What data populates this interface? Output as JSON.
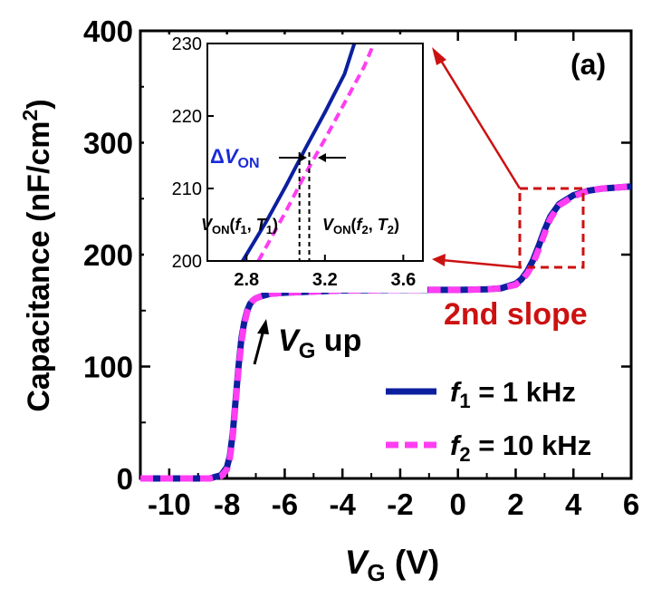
{
  "figure": {
    "panel_label": "(a)",
    "annotation_up": {
      "main": "V",
      "sub": "G",
      "rest": " up"
    },
    "annotation_slope": "2nd slope",
    "colors": {
      "f1": "#0b1f9f",
      "f2": "#ff3df2",
      "accent": "#cc1111",
      "axis": "#000000",
      "label_blue": "#1a2bd6"
    }
  },
  "chart_data": [
    {
      "type": "line",
      "title": "",
      "xlabel": {
        "main": "V",
        "sub": "G",
        "rest": " (V)"
      },
      "ylabel": "Capacitance (nF/cm",
      "ylabel_sup": "2",
      "ylabel_close": ")",
      "xlim": [
        -11,
        6
      ],
      "ylim": [
        0,
        400
      ],
      "xticks": [
        -10,
        -8,
        -6,
        -4,
        -2,
        0,
        2,
        4,
        6
      ],
      "yticks": [
        0,
        100,
        200,
        300,
        400
      ],
      "grid": false,
      "legend_position": "bottom-right",
      "series": [
        {
          "name": {
            "main": "f",
            "sub": "1",
            "rest": " = 1 kHz"
          },
          "color": "#0b1f9f",
          "style": "solid",
          "x": [
            -11,
            -8.6,
            -8.2,
            -8.0,
            -7.9,
            -7.8,
            -7.7,
            -7.6,
            -7.5,
            -7.4,
            -7.3,
            -7.2,
            -7.1,
            -7.0,
            -6.8,
            -6.5,
            -6.0,
            -4.0,
            -2.0,
            0.0,
            1.0,
            1.5,
            2.0,
            2.2,
            2.4,
            2.6,
            2.8,
            3.0,
            3.2,
            3.5,
            4.0,
            4.5,
            5.0,
            6.0
          ],
          "y": [
            0,
            0,
            3,
            10,
            20,
            40,
            70,
            100,
            125,
            140,
            150,
            156,
            159,
            161,
            163,
            165,
            166,
            168,
            168.5,
            168.5,
            169,
            170,
            174,
            178,
            185,
            195,
            208,
            222,
            234,
            245,
            253,
            257,
            259,
            261
          ]
        },
        {
          "name": {
            "main": "f",
            "sub": "2",
            "rest": " = 10 kHz"
          },
          "color": "#ff3df2",
          "style": "dashed",
          "x": [
            -11,
            -8.6,
            -8.2,
            -8.0,
            -7.9,
            -7.8,
            -7.7,
            -7.6,
            -7.5,
            -7.4,
            -7.3,
            -7.2,
            -7.1,
            -7.0,
            -6.8,
            -6.5,
            -6.0,
            -4.0,
            -2.0,
            0.0,
            1.0,
            1.5,
            2.0,
            2.2,
            2.4,
            2.6,
            2.8,
            3.0,
            3.2,
            3.5,
            4.0,
            4.5,
            5.0,
            6.0
          ],
          "y": [
            0,
            0,
            2,
            8,
            18,
            37,
            67,
            97,
            122,
            138,
            149,
            155,
            159,
            161,
            163,
            165,
            166,
            168,
            168.5,
            168.5,
            169,
            170,
            173,
            177,
            183,
            192,
            205,
            219,
            232,
            244,
            252,
            257,
            259,
            261
          ]
        }
      ]
    },
    {
      "type": "line",
      "title": "",
      "xlim": [
        2.6,
        3.7
      ],
      "ylim": [
        200,
        230
      ],
      "xticks": [
        2.8,
        3.2,
        3.6
      ],
      "yticks": [
        200,
        210,
        220,
        230
      ],
      "annotations": {
        "delta": {
          "prefix": "Δ",
          "main": "V",
          "sub": "ON"
        },
        "von1": {
          "main": "V",
          "sub": "ON",
          "open": "(",
          "f": "f",
          "fsub": "1",
          "mid": ", ",
          "t": "T",
          "tsub": "1",
          "close": ")"
        },
        "von2": {
          "main": "V",
          "sub": "ON",
          "open": "(",
          "f": "f",
          "fsub": "2",
          "mid": ", ",
          "t": "T",
          "tsub": "2",
          "close": ")"
        },
        "von_x": [
          3.07,
          3.12
        ]
      },
      "series": [
        {
          "name": "",
          "color": "#0b1f9f",
          "style": "solid",
          "x": [
            2.78,
            2.9,
            3.0,
            3.1,
            3.2,
            3.3,
            3.35
          ],
          "y": [
            200,
            205.4,
            210.3,
            215.5,
            220.5,
            225.8,
            230
          ]
        },
        {
          "name": "",
          "color": "#ff3df2",
          "style": "dashed",
          "x": [
            2.86,
            3.0,
            3.1,
            3.2,
            3.3,
            3.4,
            3.45
          ],
          "y": [
            200,
            206.8,
            212,
            216.8,
            221.8,
            226.8,
            230
          ]
        }
      ]
    }
  ]
}
